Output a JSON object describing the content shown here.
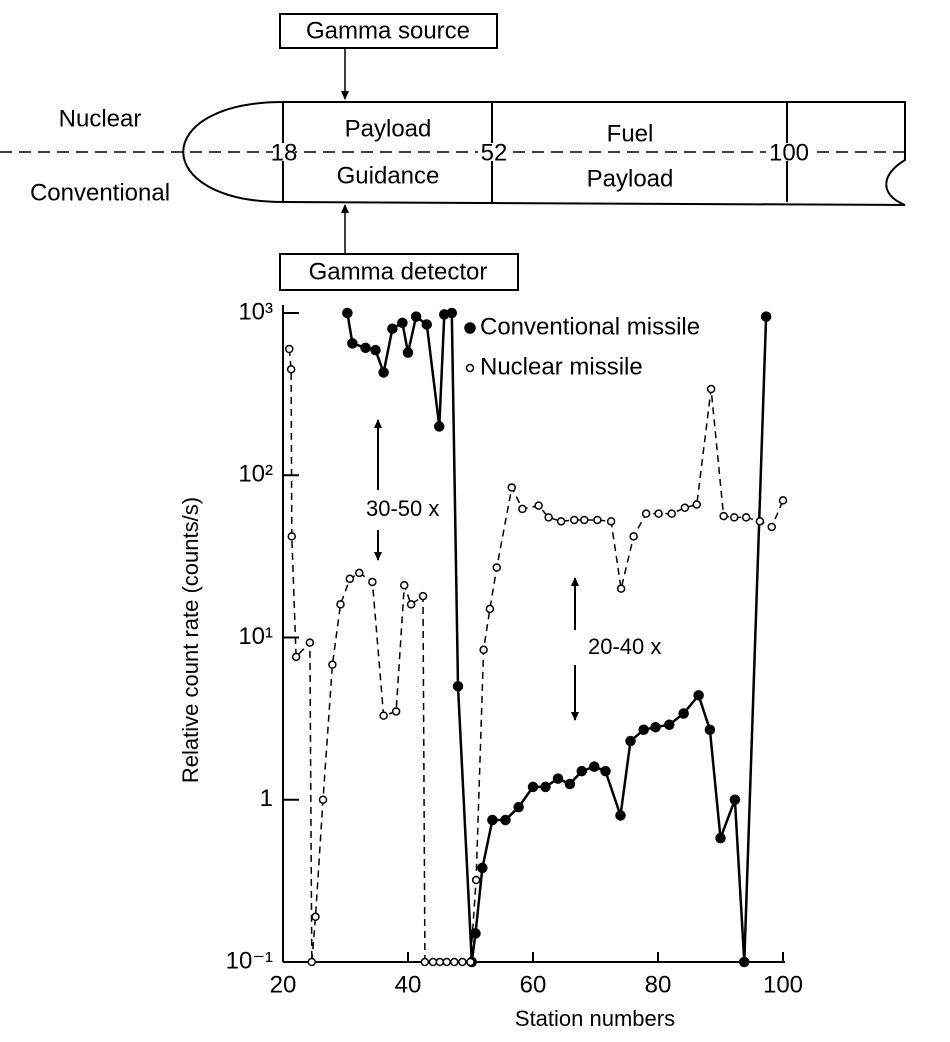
{
  "diagram": {
    "source_label": "Gamma source",
    "detector_label": "Gamma detector",
    "top_side": "Nuclear",
    "bottom_side": "Conventional",
    "sections": [
      {
        "top": "Payload",
        "bottom": "Guidance"
      },
      {
        "top": "Fuel",
        "bottom": "Payload"
      }
    ],
    "stations": [
      "18",
      "52",
      "100"
    ]
  },
  "chart_data": {
    "type": "line",
    "xlabel": "Station numbers",
    "ylabel": "Relative count rate (counts/s)",
    "xlim": [
      20,
      100
    ],
    "xticks": [
      20,
      40,
      60,
      80,
      100
    ],
    "ylim": [
      0.1,
      1000
    ],
    "log_y": true,
    "yticks": [
      {
        "value": 0.1,
        "label": "10⁻¹"
      },
      1,
      {
        "value": 10,
        "label": "10¹"
      },
      {
        "value": 100,
        "label": "10²"
      },
      {
        "value": 1000,
        "label": "10³"
      }
    ],
    "legend": "upper right",
    "annotations": [
      "30-50 x",
      "20-40 x"
    ],
    "series": [
      {
        "name": "Conventional missile",
        "color": "#000000",
        "filled": true,
        "dashed": false,
        "x": [
          30.3,
          31.1,
          33.2,
          34.8,
          36.1,
          37.5,
          39.1,
          40.0,
          41.3,
          43.0,
          45.0,
          45.8,
          47.0,
          48.0,
          50.2,
          50.8,
          51.9,
          53.5,
          55.6,
          57.7,
          60.0,
          62.0,
          64.0,
          65.9,
          67.8,
          69.8,
          71.6,
          74.0,
          75.6,
          77.7,
          79.6,
          81.8,
          84.1,
          86.5,
          88.3,
          90.0,
          92.3,
          93.8,
          97.3
        ],
        "values": [
          1000,
          650,
          610,
          590,
          430,
          800,
          870,
          570,
          950,
          850,
          200,
          980,
          1000,
          5,
          0.1,
          0.15,
          0.38,
          0.75,
          0.75,
          0.9,
          1.2,
          1.2,
          1.35,
          1.25,
          1.5,
          1.6,
          1.5,
          0.8,
          2.3,
          2.7,
          2.8,
          2.9,
          3.4,
          4.4,
          2.7,
          0.58,
          1.0,
          0.1,
          950
        ]
      },
      {
        "name": "Nuclear missile",
        "color": "#000000",
        "filled": false,
        "dashed": true,
        "x": [
          21.0,
          21.3,
          21.4,
          22.1,
          24.3,
          24.6,
          25.2,
          26.4,
          27.9,
          29.2,
          30.7,
          32.2,
          34.3,
          36.1,
          38.1,
          39.4,
          40.5,
          42.4,
          42.7,
          44.0,
          45.1,
          46.2,
          47.4,
          48.7,
          50.0,
          50.9,
          52.1,
          53.1,
          54.2,
          56.6,
          58.3,
          60.9,
          62.5,
          64.5,
          66.6,
          68.2,
          70.3,
          72.5,
          74.1,
          76.1,
          78.1,
          80.1,
          82.2,
          84.3,
          86.2,
          88.5,
          90.5,
          92.2,
          94.1,
          96.3,
          98.2,
          100
        ],
        "values": [
          600,
          450,
          42,
          7.6,
          9.3,
          0.1,
          0.19,
          1.0,
          6.8,
          16,
          23,
          25,
          22,
          3.3,
          3.5,
          21,
          16,
          18,
          0.1,
          0.1,
          0.1,
          0.1,
          0.1,
          0.1,
          0.1,
          0.32,
          8.4,
          15,
          27,
          84,
          62,
          65,
          55,
          52,
          53,
          53,
          53,
          52,
          20,
          42,
          58,
          58,
          58,
          63,
          66,
          340,
          56,
          55,
          55,
          52,
          48,
          70
        ]
      }
    ]
  }
}
